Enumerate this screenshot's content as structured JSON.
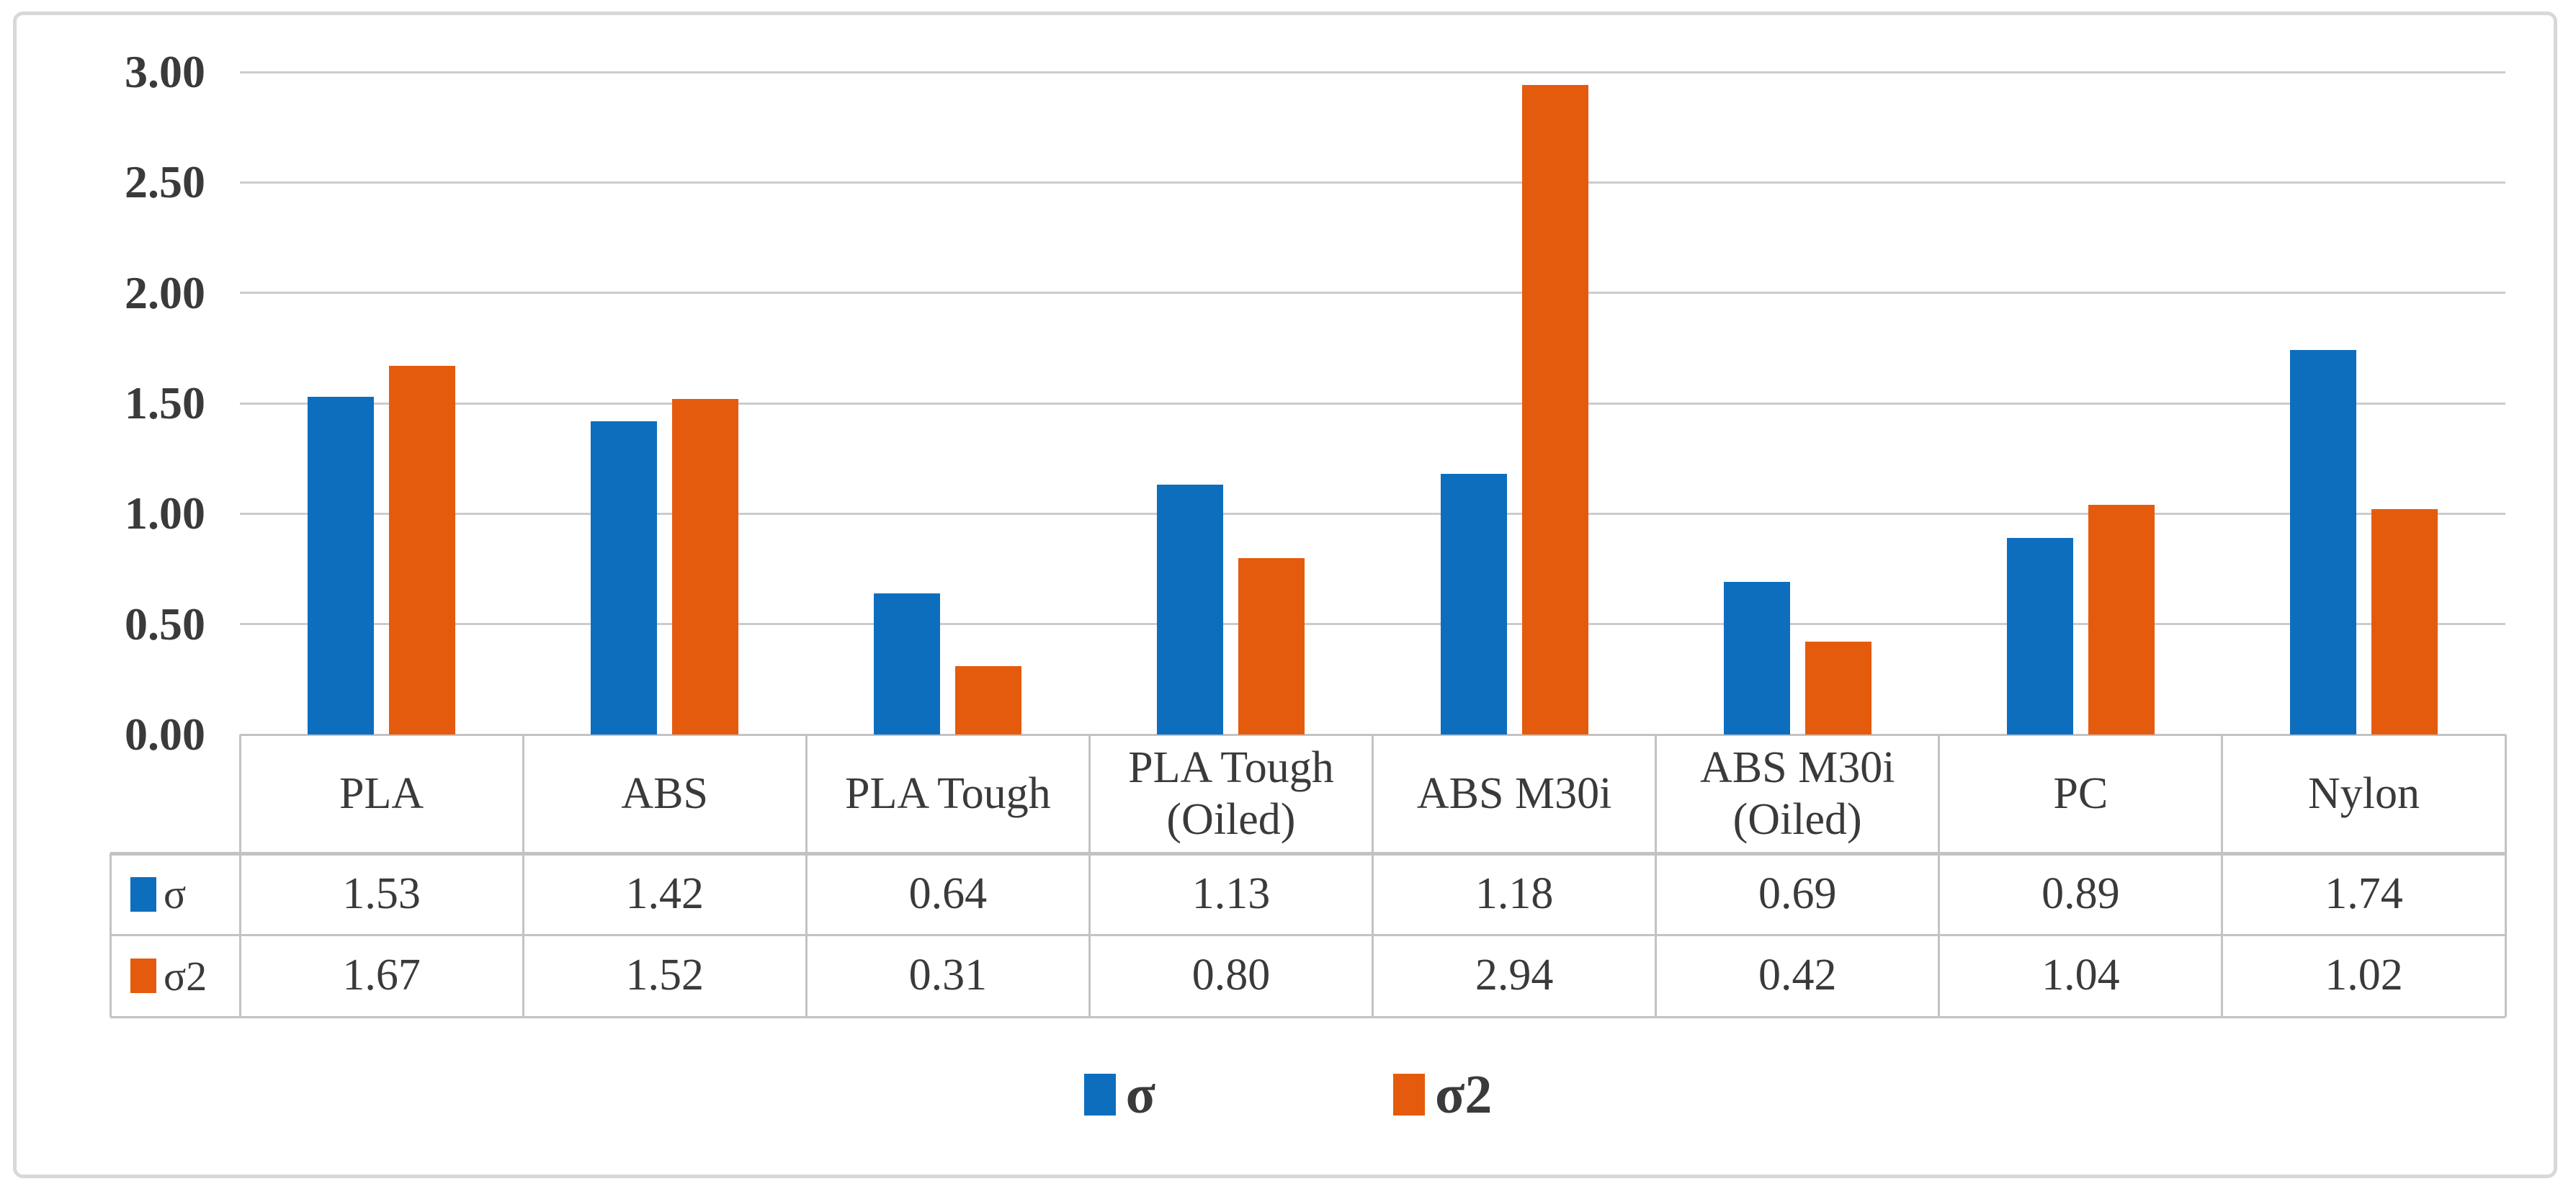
{
  "figure": {
    "background_color": "#ffffff",
    "border_color": "#d8d8d8"
  },
  "chart_data": {
    "type": "bar",
    "title": "",
    "xlabel": "",
    "ylabel": "",
    "categories": [
      "PLA",
      "ABS",
      "PLA Tough",
      "PLA Tough (Oiled)",
      "ABS M30i",
      "ABS M30i (Oiled)",
      "PC",
      "Nylon"
    ],
    "series": [
      {
        "name": "σ",
        "color": "#0d6ebe",
        "values": [
          1.53,
          1.42,
          0.64,
          1.13,
          1.18,
          0.69,
          0.89,
          1.74
        ]
      },
      {
        "name": "σ2",
        "color": "#e55b0d",
        "values": [
          1.67,
          1.52,
          0.31,
          0.8,
          2.94,
          0.42,
          1.04,
          1.02
        ]
      }
    ],
    "ylim": [
      0,
      3
    ],
    "ytick_labels": [
      "3.00",
      "2.50",
      "2.00",
      "1.50",
      "1.00",
      "0.50",
      "0.00"
    ],
    "ytick_values": [
      3.0,
      2.5,
      2.0,
      1.5,
      1.0,
      0.5,
      0.0
    ],
    "grid": true,
    "gridline_color": "#cccccc",
    "legend_position": "bottom",
    "legend_entries": [
      "σ",
      "σ2"
    ],
    "data_table": {
      "shown": true,
      "border_color": "#c3c3c3",
      "row_headers": [
        "σ",
        "σ2"
      ],
      "cell_values": [
        [
          "1.53",
          "1.42",
          "0.64",
          "1.13",
          "1.18",
          "0.69",
          "0.89",
          "1.74"
        ],
        [
          "1.67",
          "1.52",
          "0.31",
          "0.80",
          "2.94",
          "0.42",
          "1.04",
          "1.02"
        ]
      ]
    },
    "text_color": "#3a3a3a"
  }
}
